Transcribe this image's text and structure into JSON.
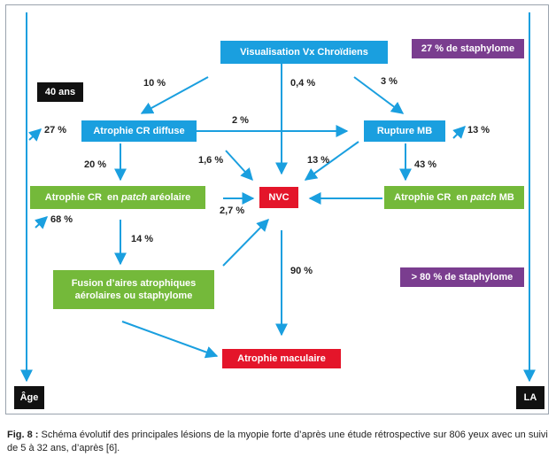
{
  "boxes": {
    "visualisation": "Visualisation Vx Chroïdiens",
    "staph27": "27 % de staphylome",
    "age40": "40 ans",
    "atrophie_diffuse": "Atrophie CR  diffuse",
    "rupture": "Rupture MB",
    "atrophie_patch_areolaire_a": "Atrophie CR  en ",
    "atrophie_patch_areolaire_i": "patch",
    "atrophie_patch_areolaire_b": " aréolaire",
    "nvc": "NVC",
    "atrophie_patch_mb_a": "Atrophie CR  en ",
    "atrophie_patch_mb_i": "patch",
    "atrophie_patch_mb_b": " MB",
    "fusion_line1": "Fusion d’aires atrophiques",
    "fusion_line2": "aérolaires ou staphylome",
    "staph80": "> 80 % de staphylome",
    "atrophie_maculaire": "Atrophie maculaire",
    "age": "Âge",
    "la": "LA"
  },
  "labels": {
    "p10": "10 %",
    "p04": "0,4 %",
    "p3": "3 %",
    "p27": "27 %",
    "p2": "2 %",
    "p13_right": "13 %",
    "p20": "20 %",
    "p16": "1,6 %",
    "p13_mid": "13 %",
    "p43": "43 %",
    "p68": "68 %",
    "p27b": "2,7 %",
    "p14": "14 %",
    "p90": "90 %"
  },
  "caption": {
    "prefix": "Fig. 8 :",
    "text": " Schéma évolutif des principales lésions de la myopie forte d’après une étude rétrospective sur 806 yeux avec un suivi de 5 à 32 ans, d’après [6]."
  },
  "colors": {
    "blue": "#1a9fdf",
    "green": "#74b93a",
    "red": "#e4152a",
    "purple": "#7a3d8f",
    "black": "#111111"
  }
}
